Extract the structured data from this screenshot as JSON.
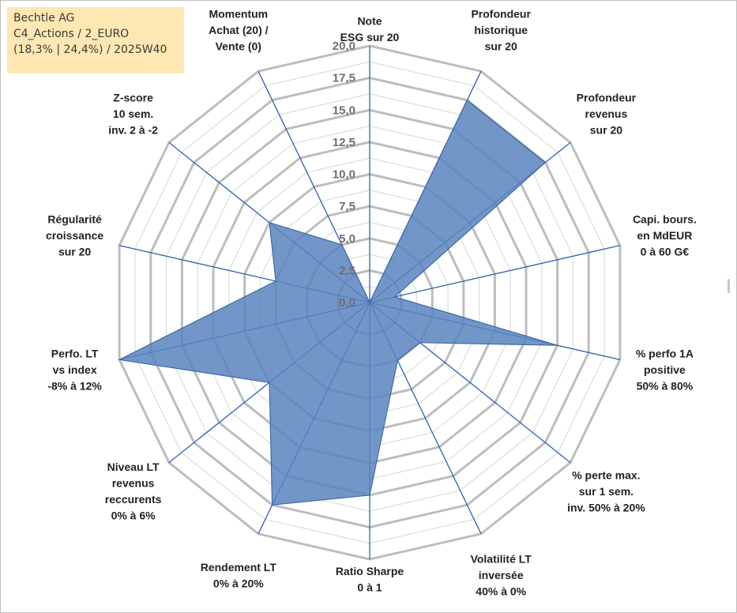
{
  "info": {
    "company": "Bechtle AG",
    "category": "C4_Actions / 2_EURO",
    "stats": "(18,3% | 24,4%) / 2025W40"
  },
  "colors": {
    "fill": "#5a84be",
    "fill_stroke": "#3d6aa8",
    "spoke": "#2f62b0",
    "ring_major": "#bdbdbd",
    "ring_minor": "#dcdcdc",
    "info_bg": "#ffe7b3"
  },
  "chart_data": {
    "type": "radar",
    "title": "",
    "rmin": 0,
    "rmax": 20,
    "tick_step": 2.5,
    "tick_labels": [
      "0,0",
      "2,5",
      "5,0",
      "7,5",
      "10,0",
      "12,5",
      "15,0",
      "17,5",
      "20,0"
    ],
    "axes": [
      {
        "label": [
          "Note",
          "ESG sur 20"
        ],
        "value": 0
      },
      {
        "label": [
          "Profondeur",
          "historique",
          "sur 20"
        ],
        "value": 17.5
      },
      {
        "label": [
          "Profondeur",
          "revenus",
          "sur 20"
        ],
        "value": 17.5
      },
      {
        "label": [
          "Capi. bours.",
          "en MdEUR",
          "0 à 60 G€"
        ],
        "value": 2
      },
      {
        "label": [
          "% perfo 1A",
          "positive",
          "50% à 80%"
        ],
        "value": 15
      },
      {
        "label": [
          "% perte max.",
          "sur 1 sem.",
          "inv. 50% à 20%"
        ],
        "value": 5
      },
      {
        "label": [
          "Volatilité LT",
          "inversée",
          "40% à 0%"
        ],
        "value": 5
      },
      {
        "label": [
          "Ratio Sharpe",
          "0 à 1"
        ],
        "value": 15
      },
      {
        "label": [
          "Rendement LT",
          "0% à 20%"
        ],
        "value": 17.5
      },
      {
        "label": [
          "Niveau LT",
          "revenus",
          "reccurents",
          "0% à 6%"
        ],
        "value": 10
      },
      {
        "label": [
          "Perfo. LT",
          "vs index",
          "-8% à 12%"
        ],
        "value": 20
      },
      {
        "label": [
          "Régularité",
          "croissance",
          "sur 20"
        ],
        "value": 7.5
      },
      {
        "label": [
          "Z-score",
          "10 sem.",
          "inv. 2 à -2"
        ],
        "value": 10
      },
      {
        "label": [
          "Momentum",
          "Achat (20) /",
          "Vente (0)"
        ],
        "value": 5
      }
    ]
  }
}
